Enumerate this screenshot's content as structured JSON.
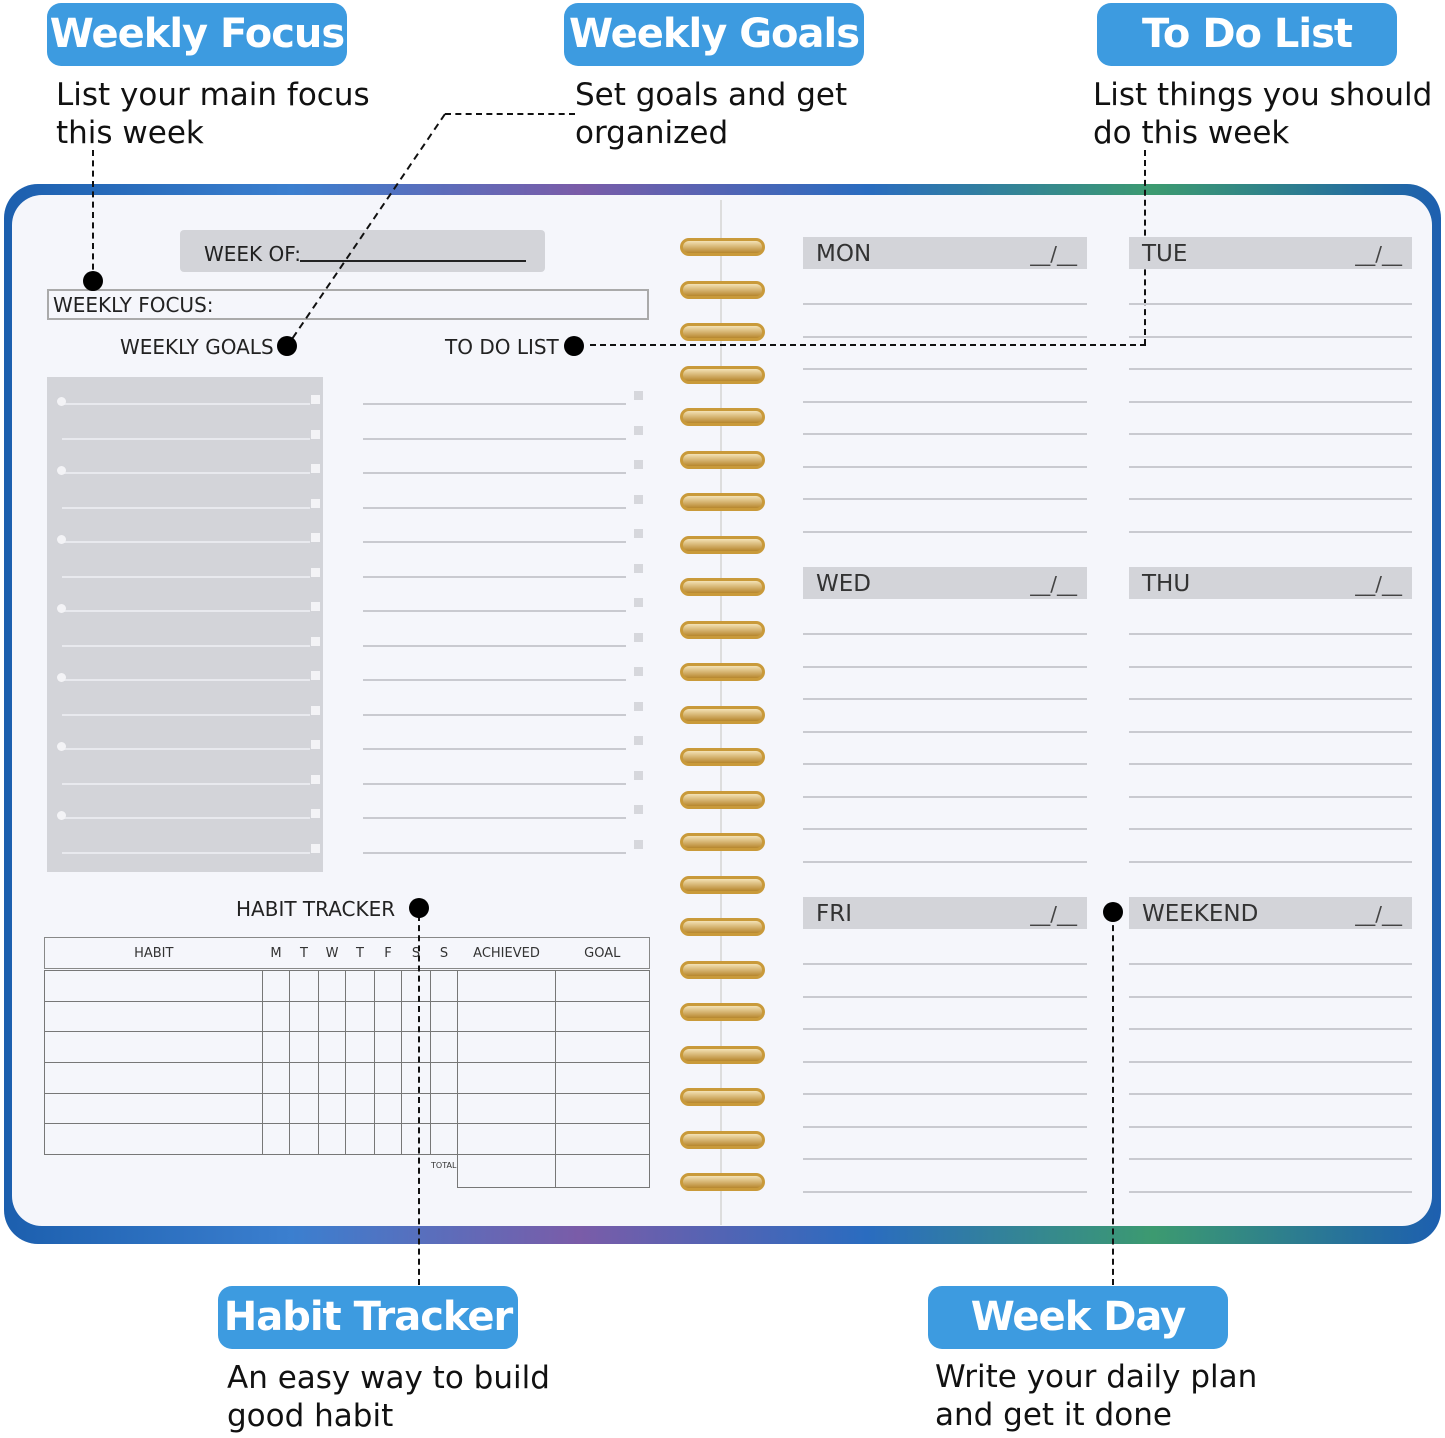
{
  "callouts": {
    "weekly_focus": {
      "title": "Weekly Focus",
      "lines": [
        "List your main focus",
        "this week"
      ]
    },
    "weekly_goals": {
      "title": "Weekly Goals",
      "lines": [
        "Set goals and get",
        "organized"
      ]
    },
    "to_do_list": {
      "title": "To Do List",
      "lines": [
        "List things you should",
        "do this week"
      ]
    },
    "habit_tracker": {
      "title": "Habit Tracker",
      "lines": [
        "An easy way to build",
        "good habit"
      ]
    },
    "week_day": {
      "title": "Week Day",
      "lines": [
        "Write your daily plan",
        "and get it done"
      ]
    }
  },
  "planner": {
    "week_of": "WEEK OF:",
    "weekly_focus": "WEEKLY FOCUS:",
    "weekly_goals": "WEEKLY GOALS",
    "to_do_list": "TO DO LIST",
    "habit_tracker": "HABIT TRACKER",
    "habit_table": {
      "headers": [
        "HABIT",
        "M",
        "T",
        "W",
        "T",
        "F",
        "S",
        "S",
        "ACHIEVED",
        "GOAL"
      ],
      "total_label": "TOTAL"
    },
    "days": [
      {
        "name": "MON",
        "date": "__/__"
      },
      {
        "name": "TUE",
        "date": "__/__"
      },
      {
        "name": "WED",
        "date": "__/__"
      },
      {
        "name": "THU",
        "date": "__/__"
      },
      {
        "name": "FRI",
        "date": "__/__"
      },
      {
        "name": "WEEKEND",
        "date": "__/__"
      }
    ]
  },
  "colors": {
    "badge": "#3d9be0",
    "page": "#f5f6fb",
    "header_gray": "#d3d4d9",
    "spiral": "#c99a3a"
  }
}
